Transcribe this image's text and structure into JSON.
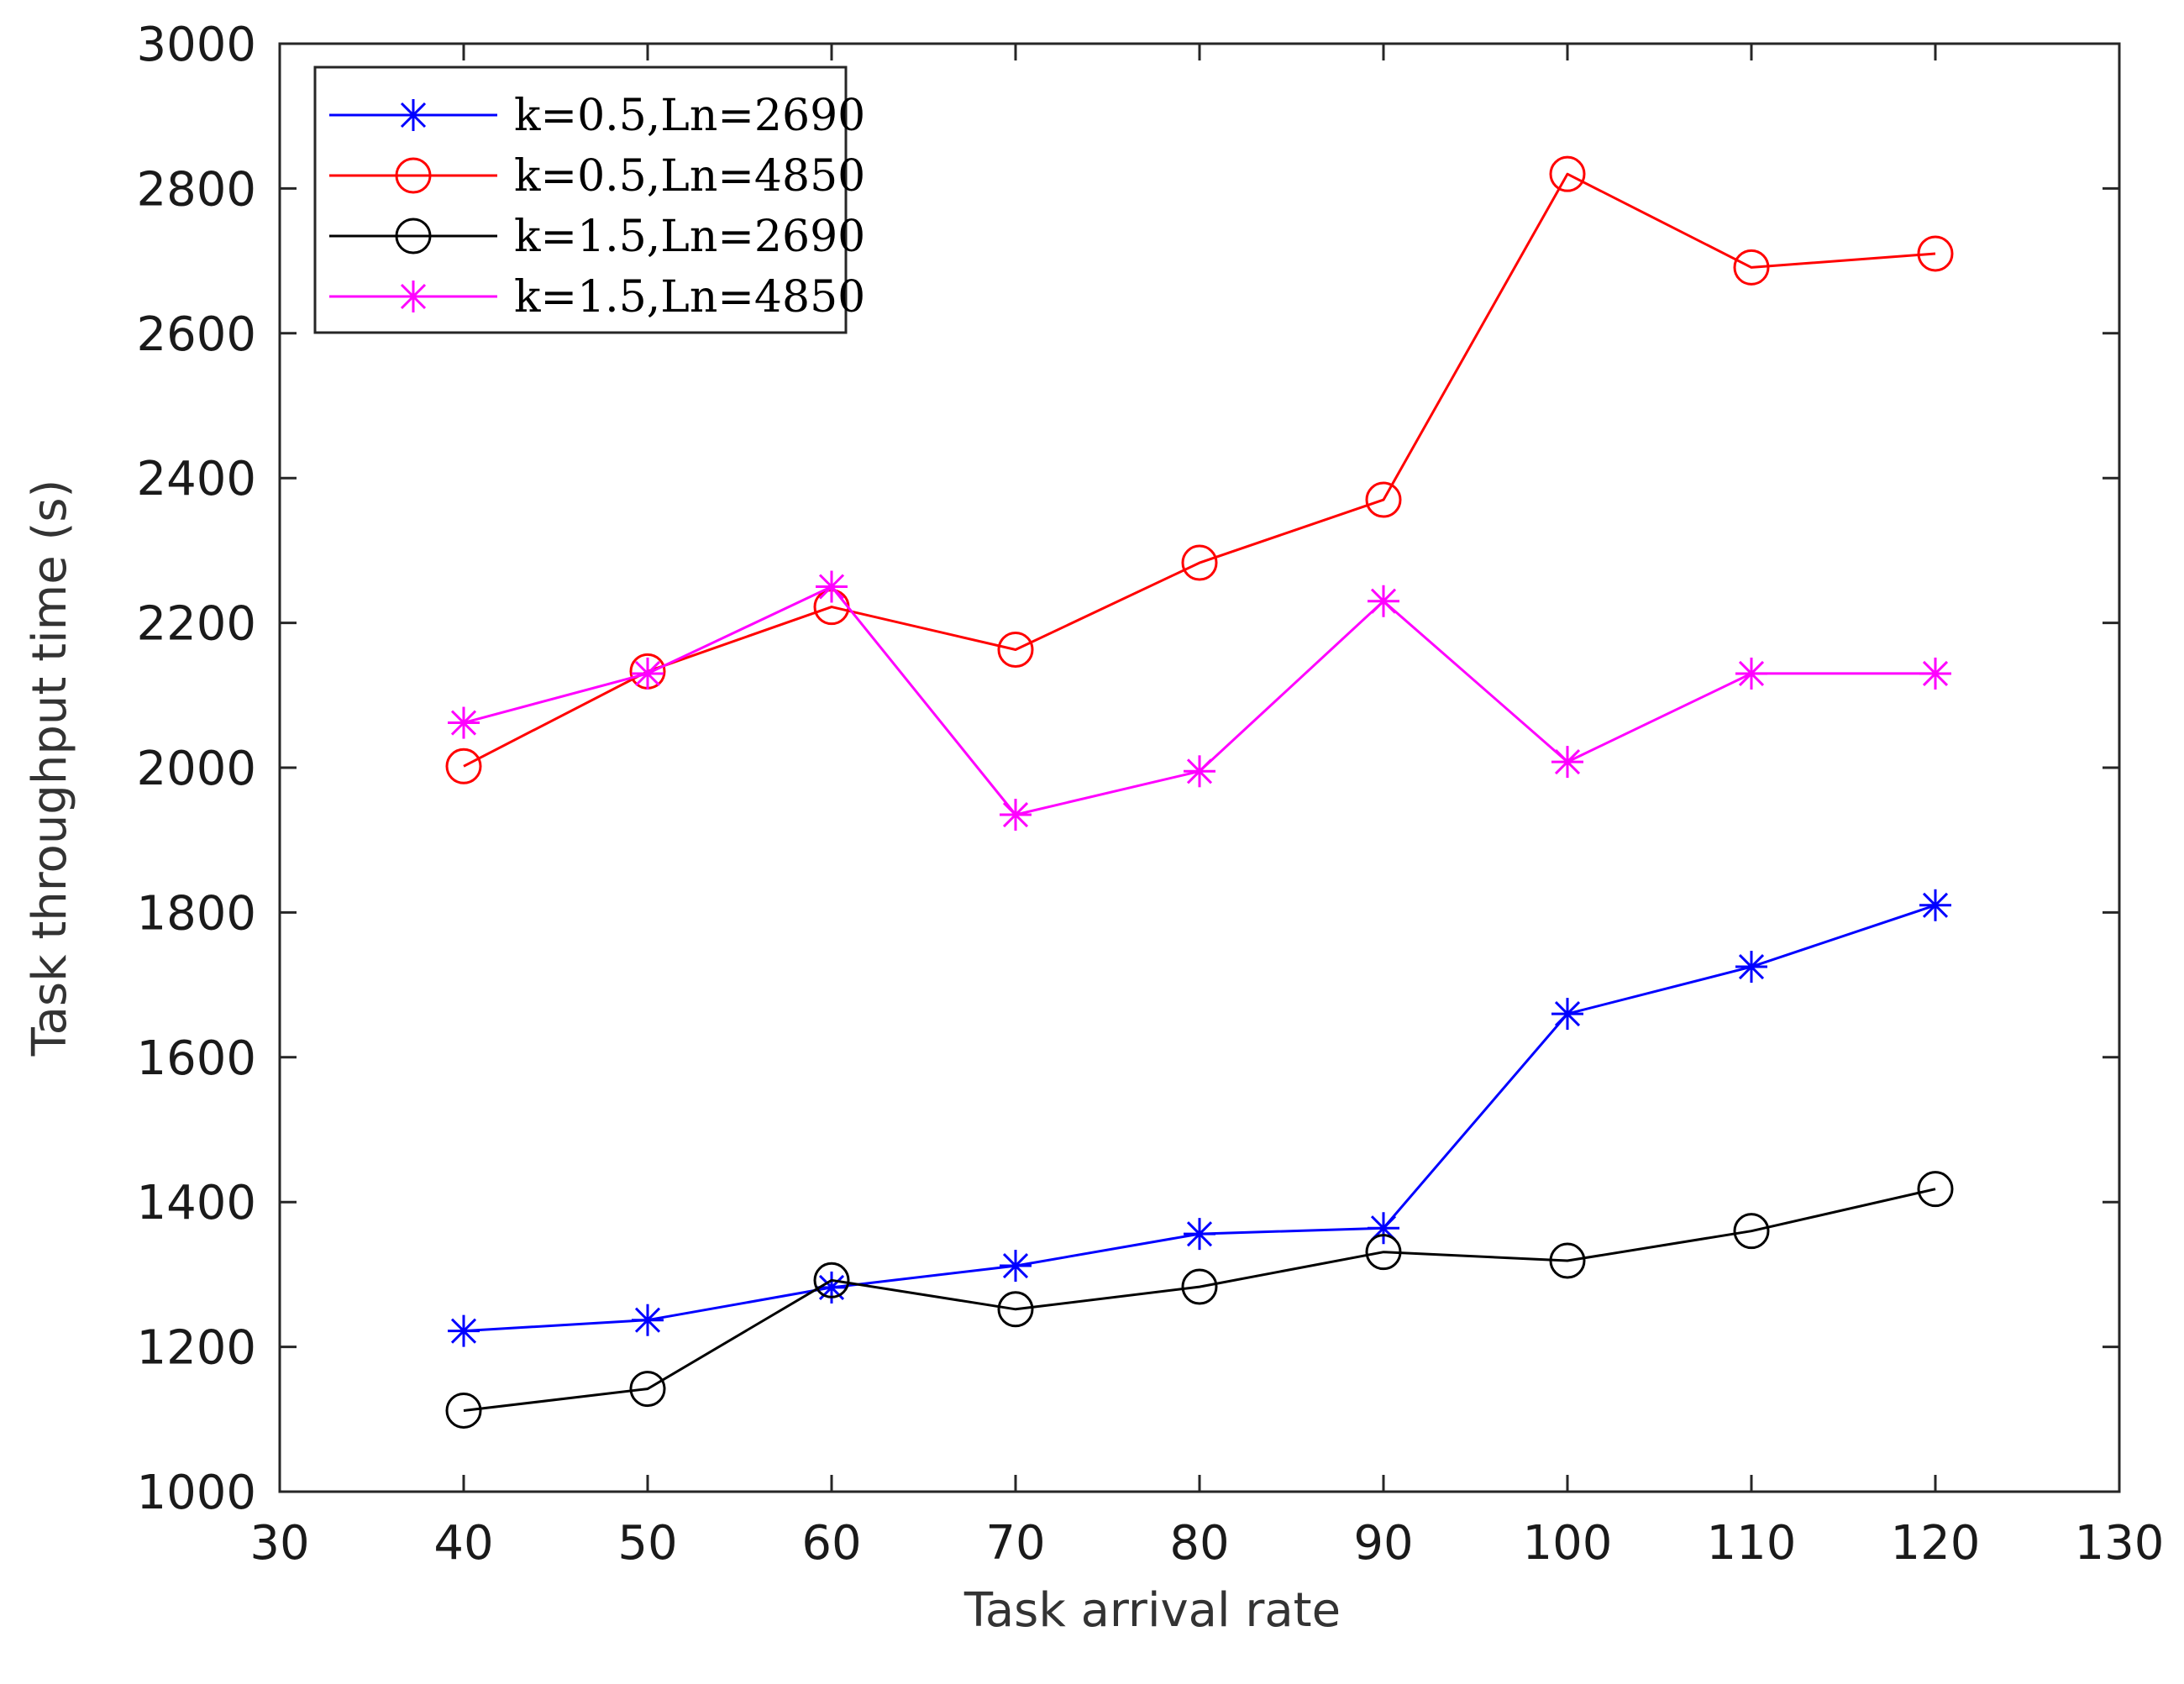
{
  "chart_data": {
    "type": "line",
    "title": "",
    "xlabel": "Task arrival rate",
    "ylabel": "Task throughput time (s)",
    "xlim": [
      30,
      130
    ],
    "ylim": [
      1000,
      3000
    ],
    "xticks": [
      30,
      40,
      50,
      60,
      70,
      80,
      90,
      100,
      110,
      120,
      130
    ],
    "yticks": [
      1000,
      1200,
      1400,
      1600,
      1800,
      2000,
      2200,
      2400,
      2600,
      2800,
      3000
    ],
    "grid": false,
    "legend_position": "top-left",
    "x": [
      40,
      50,
      60,
      70,
      80,
      90,
      100,
      110,
      120
    ],
    "series": [
      {
        "name": "k=0.5,Ln=2690",
        "color": "#0000ff",
        "marker": "asterisk",
        "values": [
          1222,
          1237,
          1282,
          1312,
          1356,
          1364,
          1660,
          1725,
          1810
        ]
      },
      {
        "name": "k=0.5,Ln=4850",
        "color": "#ff0000",
        "marker": "circle",
        "values": [
          2002,
          2133,
          2222,
          2163,
          2283,
          2370,
          2820,
          2691,
          2710
        ]
      },
      {
        "name": "k=1.5,Ln=2690",
        "color": "#000000",
        "marker": "circle",
        "values": [
          1112,
          1142,
          1292,
          1252,
          1283,
          1331,
          1319,
          1360,
          1418
        ]
      },
      {
        "name": "k=1.5,Ln=4850",
        "color": "#ff00ff",
        "marker": "asterisk",
        "values": [
          2062,
          2130,
          2250,
          1935,
          1995,
          2230,
          2008,
          2130,
          2130
        ]
      }
    ]
  }
}
